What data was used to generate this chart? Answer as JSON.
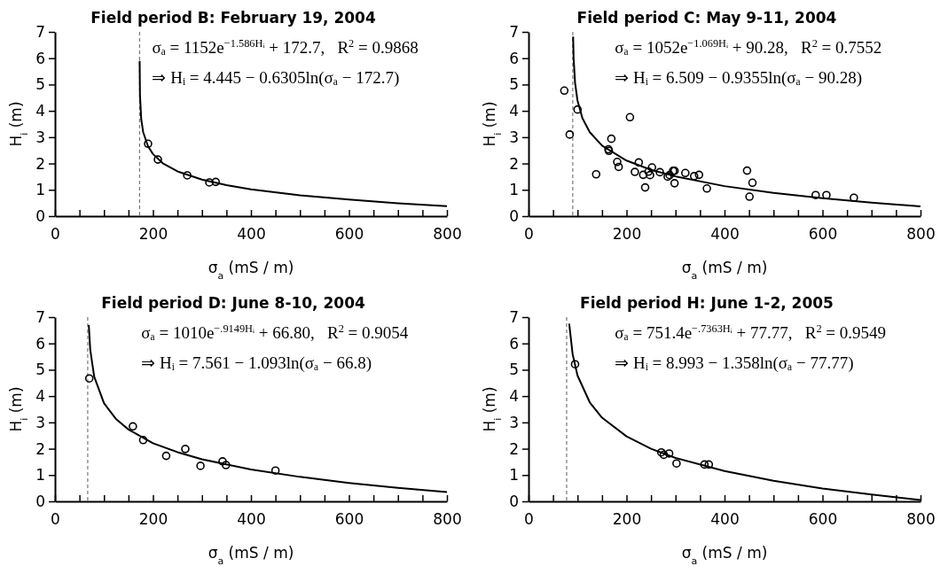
{
  "chart_data": [
    {
      "type": "scatter",
      "title": "Field period B: February 19, 2004",
      "xlabel": "σ$_{a}$ (mS / m)",
      "ylabel": "H$_{i}$ (m)",
      "xlim": [
        0,
        800
      ],
      "ylim": [
        0,
        7
      ],
      "xticks": [
        0,
        {
          "value": 50,
          "label": null
        },
        {
          "value": 100,
          "label": null
        },
        {
          "value": 150,
          "label": null
        },
        200,
        {
          "value": 250,
          "label": null
        },
        {
          "value": 300,
          "label": null
        },
        {
          "value": 350,
          "label": null
        },
        400,
        {
          "value": 450,
          "label": null
        },
        {
          "value": 500,
          "label": null
        },
        {
          "value": 550,
          "label": null
        },
        600,
        {
          "value": 650,
          "label": null
        },
        {
          "value": 700,
          "label": null
        },
        {
          "value": 750,
          "label": null
        },
        800
      ],
      "yticks": [
        0,
        1,
        2,
        3,
        4,
        5,
        6,
        7
      ],
      "grid": false,
      "series": [
        {
          "marker": "circle",
          "color": "#000000",
          "x": [
            190,
            210,
            270,
            315,
            328
          ],
          "values": [
            2.75,
            2.15,
            1.55,
            1.28,
            1.3
          ]
        },
        {
          "type": "line",
          "color": "#000000",
          "x": [
            172.8,
            173.5,
            176,
            180,
            190,
            200,
            220,
            250,
            300,
            350,
            400,
            500,
            600,
            700,
            800
          ],
          "values": [
            5.9,
            4.59,
            3.69,
            3.19,
            2.65,
            2.36,
            2.01,
            1.7,
            1.39,
            1.18,
            1.02,
            0.79,
            0.63,
            0.49,
            0.38
          ]
        }
      ],
      "ref_lines": [
        {
          "axis": "x",
          "value": 172.7,
          "color": "#777777",
          "line_style": "dashed"
        }
      ],
      "annotations": [
        "σₐ = 1152e$^{−1.586Hᵢ}$ + 172.7,   R$^{2}$ = 0.9868",
        "⇒ Hᵢ = 4.445 − 0.6305ln(σₐ − 172.7)"
      ]
    },
    {
      "type": "scatter",
      "title": "Field period C: May 9-11, 2004",
      "xlabel": "σ$_{a}$ (mS / m)",
      "ylabel": "H$_{i}$ (m)",
      "xlim": [
        0,
        800
      ],
      "ylim": [
        0,
        7
      ],
      "xticks": [
        0,
        {
          "value": 50,
          "label": null
        },
        {
          "value": 100,
          "label": null
        },
        {
          "value": 150,
          "label": null
        },
        200,
        {
          "value": 250,
          "label": null
        },
        {
          "value": 300,
          "label": null
        },
        {
          "value": 350,
          "label": null
        },
        400,
        {
          "value": 450,
          "label": null
        },
        {
          "value": 500,
          "label": null
        },
        {
          "value": 550,
          "label": null
        },
        600,
        {
          "value": 650,
          "label": null
        },
        {
          "value": 700,
          "label": null
        },
        {
          "value": 750,
          "label": null
        },
        800
      ],
      "yticks": [
        0,
        1,
        2,
        3,
        4,
        5,
        6,
        7
      ],
      "grid": false,
      "series": [
        {
          "marker": "circle",
          "color": "#000000",
          "x": [
            73,
            84,
            100,
            138,
            163,
            164,
            169,
            181,
            184,
            207,
            217,
            225,
            234,
            238,
            245,
            248,
            252,
            268,
            284,
            288,
            295,
            298,
            298,
            320,
            338,
            348,
            364,
            446,
            451,
            457,
            586,
            608,
            664
          ],
          "values": [
            4.77,
            3.1,
            4.05,
            1.59,
            2.54,
            2.48,
            2.94,
            2.06,
            1.87,
            3.76,
            1.68,
            2.04,
            1.57,
            1.09,
            1.69,
            1.56,
            1.85,
            1.67,
            1.5,
            1.56,
            1.72,
            1.72,
            1.25,
            1.64,
            1.52,
            1.57,
            1.05,
            1.73,
            0.74,
            1.27,
            0.8,
            0.8,
            0.7
          ]
        },
        {
          "type": "line",
          "color": "#000000",
          "x": [
            91,
            92,
            95,
            100,
            110,
            125,
            150,
            200,
            250,
            300,
            400,
            500,
            600,
            700,
            800
          ],
          "values": [
            6.82,
            6.0,
            5.06,
            4.38,
            3.72,
            3.19,
            2.68,
            2.11,
            1.76,
            1.51,
            1.14,
            0.88,
            0.68,
            0.51,
            0.37
          ]
        }
      ],
      "ref_lines": [
        {
          "axis": "x",
          "value": 90.28,
          "color": "#777777",
          "line_style": "dashed"
        }
      ],
      "annotations": [
        "σₐ = 1052e$^{−1.069Hᵢ}$ + 90.28,   R$^{2}$ = 0.7552",
        "⇒ Hᵢ = 6.509 − 0.9355ln(σₐ − 90.28)"
      ]
    },
    {
      "type": "scatter",
      "title": "Field period D: June 8-10, 2004",
      "xlabel": "σ$_{a}$ (mS / m)",
      "ylabel": "H$_{i}$ (m)",
      "xlim": [
        0,
        800
      ],
      "ylim": [
        0,
        7
      ],
      "xticks": [
        0,
        {
          "value": 50,
          "label": null
        },
        {
          "value": 100,
          "label": null
        },
        {
          "value": 150,
          "label": null
        },
        200,
        {
          "value": 250,
          "label": null
        },
        {
          "value": 300,
          "label": null
        },
        {
          "value": 350,
          "label": null
        },
        400,
        {
          "value": 450,
          "label": null
        },
        {
          "value": 500,
          "label": null
        },
        {
          "value": 550,
          "label": null
        },
        600,
        {
          "value": 650,
          "label": null
        },
        {
          "value": 700,
          "label": null
        },
        {
          "value": 750,
          "label": null
        },
        800
      ],
      "yticks": [
        0,
        1,
        2,
        3,
        4,
        5,
        6,
        7
      ],
      "grid": false,
      "series": [
        {
          "marker": "circle",
          "color": "#000000",
          "x": [
            70,
            159,
            180,
            227,
            266,
            297,
            342,
            349,
            450
          ],
          "values": [
            4.67,
            2.85,
            2.33,
            1.73,
            1.99,
            1.35,
            1.52,
            1.38,
            1.17
          ]
        },
        {
          "type": "line",
          "color": "#000000",
          "x": [
            69,
            72,
            80,
            100,
            125,
            150,
            200,
            250,
            300,
            400,
            500,
            600,
            700,
            800
          ],
          "values": [
            6.7,
            5.76,
            4.74,
            3.73,
            3.12,
            2.73,
            2.21,
            1.87,
            1.6,
            1.21,
            0.93,
            0.7,
            0.51,
            0.35
          ]
        }
      ],
      "ref_lines": [
        {
          "axis": "x",
          "value": 66.8,
          "color": "#777777",
          "line_style": "dashed"
        }
      ],
      "annotations": [
        "σₐ = 1010e$^{−.9149Hᵢ}$ + 66.80,   R$^{2}$ = 0.9054",
        "⇒ Hᵢ = 7.561 − 1.093ln(σₐ − 66.8)"
      ]
    },
    {
      "type": "scatter",
      "title": "Field period H: June 1-2, 2005",
      "xlabel": "σ$_{a}$ (mS / m)",
      "ylabel": "H$_{i}$ (m)",
      "xlim": [
        0,
        800
      ],
      "ylim": [
        0,
        7
      ],
      "xticks": [
        0,
        {
          "value": 50,
          "label": null
        },
        {
          "value": 100,
          "label": null
        },
        {
          "value": 150,
          "label": null
        },
        200,
        {
          "value": 250,
          "label": null
        },
        {
          "value": 300,
          "label": null
        },
        {
          "value": 350,
          "label": null
        },
        400,
        {
          "value": 450,
          "label": null
        },
        {
          "value": 500,
          "label": null
        },
        {
          "value": 550,
          "label": null
        },
        600,
        {
          "value": 650,
          "label": null
        },
        {
          "value": 700,
          "label": null
        },
        {
          "value": 750,
          "label": null
        },
        800
      ],
      "yticks": [
        0,
        1,
        2,
        3,
        4,
        5,
        6,
        7
      ],
      "grid": false,
      "series": [
        {
          "marker": "circle",
          "color": "#000000",
          "x": [
            95,
            271,
            276,
            287,
            302,
            359,
            368
          ],
          "values": [
            5.21,
            1.86,
            1.77,
            1.82,
            1.44,
            1.4,
            1.4
          ]
        },
        {
          "type": "line",
          "color": "#000000",
          "x": [
            83,
            90,
            100,
            125,
            150,
            200,
            250,
            300,
            400,
            500,
            600,
            700,
            800
          ],
          "values": [
            6.75,
            5.59,
            4.78,
            3.76,
            3.18,
            2.47,
            2.0,
            1.65,
            1.15,
            0.78,
            0.49,
            0.26,
            0.05
          ]
        }
      ],
      "ref_lines": [
        {
          "axis": "x",
          "value": 77.77,
          "color": "#777777",
          "line_style": "dashed"
        }
      ],
      "annotations": [
        "σₐ = 751.4e$^{−.7363Hᵢ}$ + 77.77,   R$^{2}$ = 0.9549",
        "⇒ Hᵢ = 8.993 − 1.358ln(σₐ − 77.77)"
      ]
    }
  ]
}
